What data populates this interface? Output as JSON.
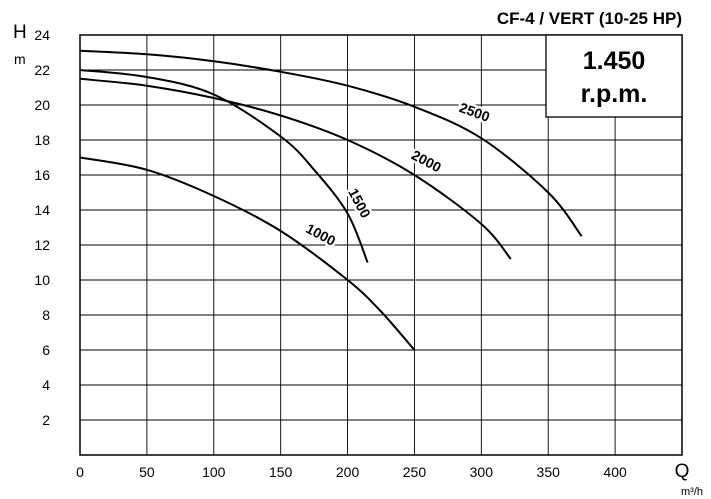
{
  "chart_data": {
    "type": "line",
    "title": "CF-4 / VERT (10-25 HP)",
    "speed_line1": "1.450",
    "speed_line2": "r.p.m.",
    "y_axis_letter": "H",
    "y_axis_unit": "m",
    "x_axis_letter": "Q",
    "x_axis_unit": "m³/h",
    "xlim": [
      0,
      450
    ],
    "ylim": [
      0,
      24
    ],
    "grid": true,
    "x_ticks": [
      "0",
      "50",
      "100",
      "150",
      "200",
      "250",
      "300",
      "350",
      "400"
    ],
    "y_ticks": [
      "2",
      "4",
      "6",
      "8",
      "10",
      "12",
      "14",
      "16",
      "18",
      "20",
      "22",
      "24"
    ],
    "series": [
      {
        "name": "1000",
        "x": [
          0,
          50,
          100,
          150,
          200,
          225,
          250
        ],
        "y": [
          17.0,
          16.3,
          14.8,
          12.8,
          10.0,
          8.2,
          6.0
        ]
      },
      {
        "name": "1500",
        "x": [
          0,
          50,
          100,
          150,
          175,
          200,
          215
        ],
        "y": [
          22.0,
          21.6,
          20.6,
          18.2,
          16.3,
          13.8,
          11.0
        ]
      },
      {
        "name": "2000",
        "x": [
          0,
          50,
          100,
          150,
          200,
          250,
          300,
          322
        ],
        "y": [
          21.5,
          21.1,
          20.4,
          19.4,
          18.0,
          16.0,
          13.2,
          11.2
        ]
      },
      {
        "name": "2500",
        "x": [
          0,
          50,
          100,
          150,
          200,
          250,
          300,
          350,
          375
        ],
        "y": [
          23.1,
          22.9,
          22.5,
          21.9,
          21.1,
          19.9,
          18.1,
          15.0,
          12.5
        ]
      }
    ],
    "labels_on_curves": [
      {
        "text": "2500",
        "x": 295,
        "y": 19.6,
        "angle": 20
      },
      {
        "text": "2000",
        "x": 259,
        "y": 16.8,
        "angle": 28
      },
      {
        "text": "1500",
        "x": 209,
        "y": 14.4,
        "angle": 62
      },
      {
        "text": "1000",
        "x": 180,
        "y": 12.6,
        "angle": 28
      }
    ]
  }
}
